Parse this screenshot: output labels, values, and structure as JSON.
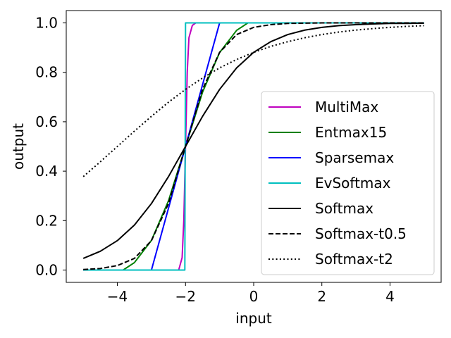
{
  "chart_data": {
    "type": "line",
    "title": "",
    "xlabel": "input",
    "ylabel": "output",
    "xlim": [
      -5.5,
      5.5
    ],
    "ylim": [
      -0.05,
      1.05
    ],
    "xticks": [
      -4,
      -2,
      0,
      2,
      4
    ],
    "xtick_labels": [
      "−4",
      "−2",
      "0",
      "2",
      "4"
    ],
    "yticks": [
      0.0,
      0.2,
      0.4,
      0.6,
      0.8,
      1.0
    ],
    "ytick_labels": [
      "0.0",
      "0.2",
      "0.4",
      "0.6",
      "0.8",
      "1.0"
    ],
    "grid": false,
    "legend_position": "lower-right",
    "series": [
      {
        "name": "MultiMax",
        "color": "#bf00bf",
        "dash": "solid",
        "x": [
          -5,
          -2.2,
          -2.1,
          -2.05,
          -2.0,
          -1.95,
          -1.9,
          -1.8,
          -1.7,
          5
        ],
        "y": [
          0.0,
          0.0,
          0.05,
          0.2,
          0.5,
          0.8,
          0.94,
          0.99,
          1.0,
          1.0
        ]
      },
      {
        "name": "Entmax15",
        "color": "#008000",
        "dash": "solid",
        "x": [
          -5,
          -3.83,
          -3.5,
          -3.0,
          -2.5,
          -2.0,
          -1.5,
          -1.0,
          -0.5,
          -0.17,
          5
        ],
        "y": [
          0.0,
          0.0,
          0.03,
          0.12,
          0.28,
          0.5,
          0.72,
          0.88,
          0.97,
          1.0,
          1.0
        ]
      },
      {
        "name": "Sparsemax",
        "color": "#0000ff",
        "dash": "solid",
        "x": [
          -5,
          -3,
          -1,
          5
        ],
        "y": [
          0.0,
          0.0,
          1.0,
          1.0
        ]
      },
      {
        "name": "EvSoftmax",
        "color": "#00bfbf",
        "dash": "solid",
        "x": [
          -5,
          -2.02,
          -2.0,
          5
        ],
        "y": [
          0.0,
          0.0,
          1.0,
          1.0
        ]
      },
      {
        "name": "Softmax",
        "color": "#000000",
        "dash": "solid",
        "x": [
          -5,
          -4.5,
          -4,
          -3.5,
          -3,
          -2.5,
          -2,
          -1.5,
          -1,
          -0.5,
          0,
          0.5,
          1,
          1.5,
          2,
          2.5,
          3,
          3.5,
          4,
          4.5,
          5
        ],
        "y": [
          0.047,
          0.076,
          0.119,
          0.182,
          0.269,
          0.378,
          0.5,
          0.622,
          0.731,
          0.818,
          0.881,
          0.924,
          0.953,
          0.971,
          0.982,
          0.989,
          0.993,
          0.996,
          0.998,
          0.998,
          0.999
        ]
      },
      {
        "name": "Softmax-t0.5",
        "color": "#000000",
        "dash": "dashed",
        "x": [
          -5,
          -4.5,
          -4,
          -3.5,
          -3,
          -2.5,
          -2,
          -1.5,
          -1,
          -0.5,
          0,
          0.5,
          1,
          1.5,
          2,
          2.5,
          3,
          3.5,
          4,
          4.5,
          5
        ],
        "y": [
          0.002,
          0.006,
          0.018,
          0.047,
          0.119,
          0.269,
          0.5,
          0.731,
          0.881,
          0.953,
          0.982,
          0.993,
          0.998,
          0.999,
          1.0,
          1.0,
          1.0,
          1.0,
          1.0,
          1.0,
          1.0
        ]
      },
      {
        "name": "Softmax-t2",
        "color": "#000000",
        "dash": "dotted",
        "x": [
          -5,
          -4.5,
          -4,
          -3.5,
          -3,
          -2.5,
          -2,
          -1.5,
          -1,
          -0.5,
          0,
          0.5,
          1,
          1.5,
          2,
          2.5,
          3,
          3.5,
          4,
          4.5,
          5
        ],
        "y": [
          0.378,
          0.438,
          0.5,
          0.562,
          0.622,
          0.679,
          0.731,
          0.777,
          0.818,
          0.852,
          0.881,
          0.905,
          0.924,
          0.94,
          0.953,
          0.963,
          0.971,
          0.977,
          0.982,
          0.986,
          0.989
        ]
      }
    ]
  }
}
